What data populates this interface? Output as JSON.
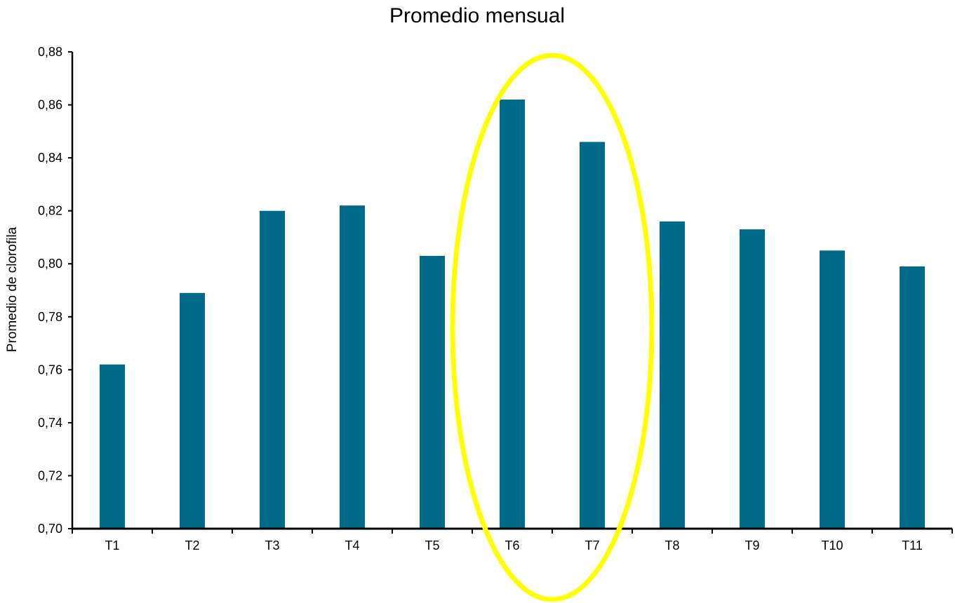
{
  "chart_data": {
    "type": "bar",
    "title": "Promedio mensual",
    "xlabel": "",
    "ylabel": "Promedio de clorofila",
    "categories": [
      "T1",
      "T2",
      "T3",
      "T4",
      "T5",
      "T6",
      "T7",
      "T8",
      "T9",
      "T10",
      "T11"
    ],
    "values": [
      0.762,
      0.789,
      0.82,
      0.822,
      0.803,
      0.862,
      0.846,
      0.816,
      0.813,
      0.805,
      0.799
    ],
    "ylim": [
      0.7,
      0.88
    ],
    "yticks": [
      "0,70",
      "0,72",
      "0,74",
      "0,76",
      "0,78",
      "0,80",
      "0,82",
      "0,84",
      "0,86",
      "0,88"
    ],
    "grid": false,
    "legend": "none",
    "highlight": {
      "categories": [
        "T6",
        "T7"
      ],
      "shape": "ellipse",
      "color": "#ffff00"
    },
    "colors": {
      "bar": "#006a8a",
      "axis": "#000000"
    }
  }
}
